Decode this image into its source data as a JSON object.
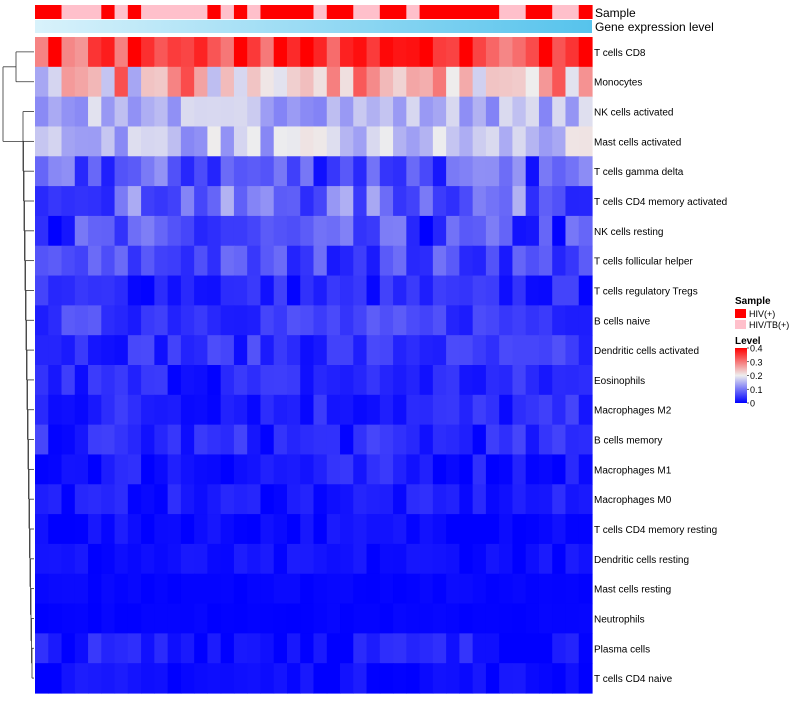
{
  "chart_data": {
    "type": "heatmap",
    "title": "",
    "annotation_tracks": [
      {
        "name": "Sample",
        "label": "Sample"
      },
      {
        "name": "Gene expression level",
        "label": "Gene expression level"
      }
    ],
    "row_labels": [
      "T cells CD8",
      "Monocytes",
      "NK cells activated",
      "Mast cells activated",
      "T cells gamma delta",
      "T cells CD4 memory activated",
      "NK cells resting",
      "T cells follicular helper",
      "T cells regulatory  Tregs",
      "B cells naive",
      "Dendritic cells activated",
      "Eosinophils",
      "Macrophages M2",
      "B cells memory",
      "Macrophages M1",
      "Macrophages M0",
      "T cells CD4 memory resting",
      "Dendritic cells resting",
      "Mast cells resting",
      "Neutrophils",
      "Plasma cells",
      "T cells CD4 naive"
    ],
    "n_columns": 42,
    "sample_groups": [
      "HIV(+)",
      "HIV(+)",
      "HIV/TB(+)",
      "HIV/TB(+)",
      "HIV/TB(+)",
      "HIV(+)",
      "HIV/TB(+)",
      "HIV(+)",
      "HIV/TB(+)",
      "HIV/TB(+)",
      "HIV/TB(+)",
      "HIV/TB(+)",
      "HIV/TB(+)",
      "HIV(+)",
      "HIV/TB(+)",
      "HIV(+)",
      "HIV/TB(+)",
      "HIV(+)",
      "HIV(+)",
      "HIV(+)",
      "HIV(+)",
      "HIV/TB(+)",
      "HIV(+)",
      "HIV(+)",
      "HIV/TB(+)",
      "HIV/TB(+)",
      "HIV(+)",
      "HIV(+)",
      "HIV/TB(+)",
      "HIV(+)",
      "HIV(+)",
      "HIV(+)",
      "HIV(+)",
      "HIV(+)",
      "HIV(+)",
      "HIV/TB(+)",
      "HIV/TB(+)",
      "HIV(+)",
      "HIV(+)",
      "HIV/TB(+)",
      "HIV/TB(+)",
      "HIV(+)"
    ],
    "row_means": [
      0.32,
      0.26,
      0.15,
      0.16,
      0.07,
      0.09,
      0.05,
      0.06,
      0.03,
      0.05,
      0.04,
      0.03,
      0.03,
      0.03,
      0.02,
      0.02,
      0.01,
      0.01,
      0.005,
      0.003,
      0.02,
      0.01
    ],
    "row_spread": [
      0.08,
      0.09,
      0.04,
      0.05,
      0.06,
      0.06,
      0.06,
      0.04,
      0.03,
      0.03,
      0.03,
      0.03,
      0.03,
      0.03,
      0.03,
      0.02,
      0.015,
      0.015,
      0.005,
      0.003,
      0.03,
      0.015
    ],
    "col_gradient_note": "Gene expression level track shades from light to deeper sky blue left to right",
    "color_scale": {
      "legend_title": "Level",
      "min": 0,
      "max": 0.4,
      "ticks": [
        "0.4",
        "0.3",
        "0.2",
        "0.1",
        "0"
      ],
      "tick_values": [
        0.4,
        0.3,
        0.2,
        0.1,
        0
      ],
      "low_color": "#0000ff",
      "mid_color": "#eeeeee",
      "high_color": "#ff0000"
    },
    "legend": {
      "sample_title": "Sample",
      "sample_entries": [
        {
          "label": "HIV(+)",
          "color": "#ff0000"
        },
        {
          "label": "HIV/TB(+)",
          "color": "#ffc0cb"
        }
      ]
    },
    "expression_track_colors": {
      "start": "#d9f2fb",
      "end": "#56c3ec"
    },
    "legend_placement": "right"
  }
}
